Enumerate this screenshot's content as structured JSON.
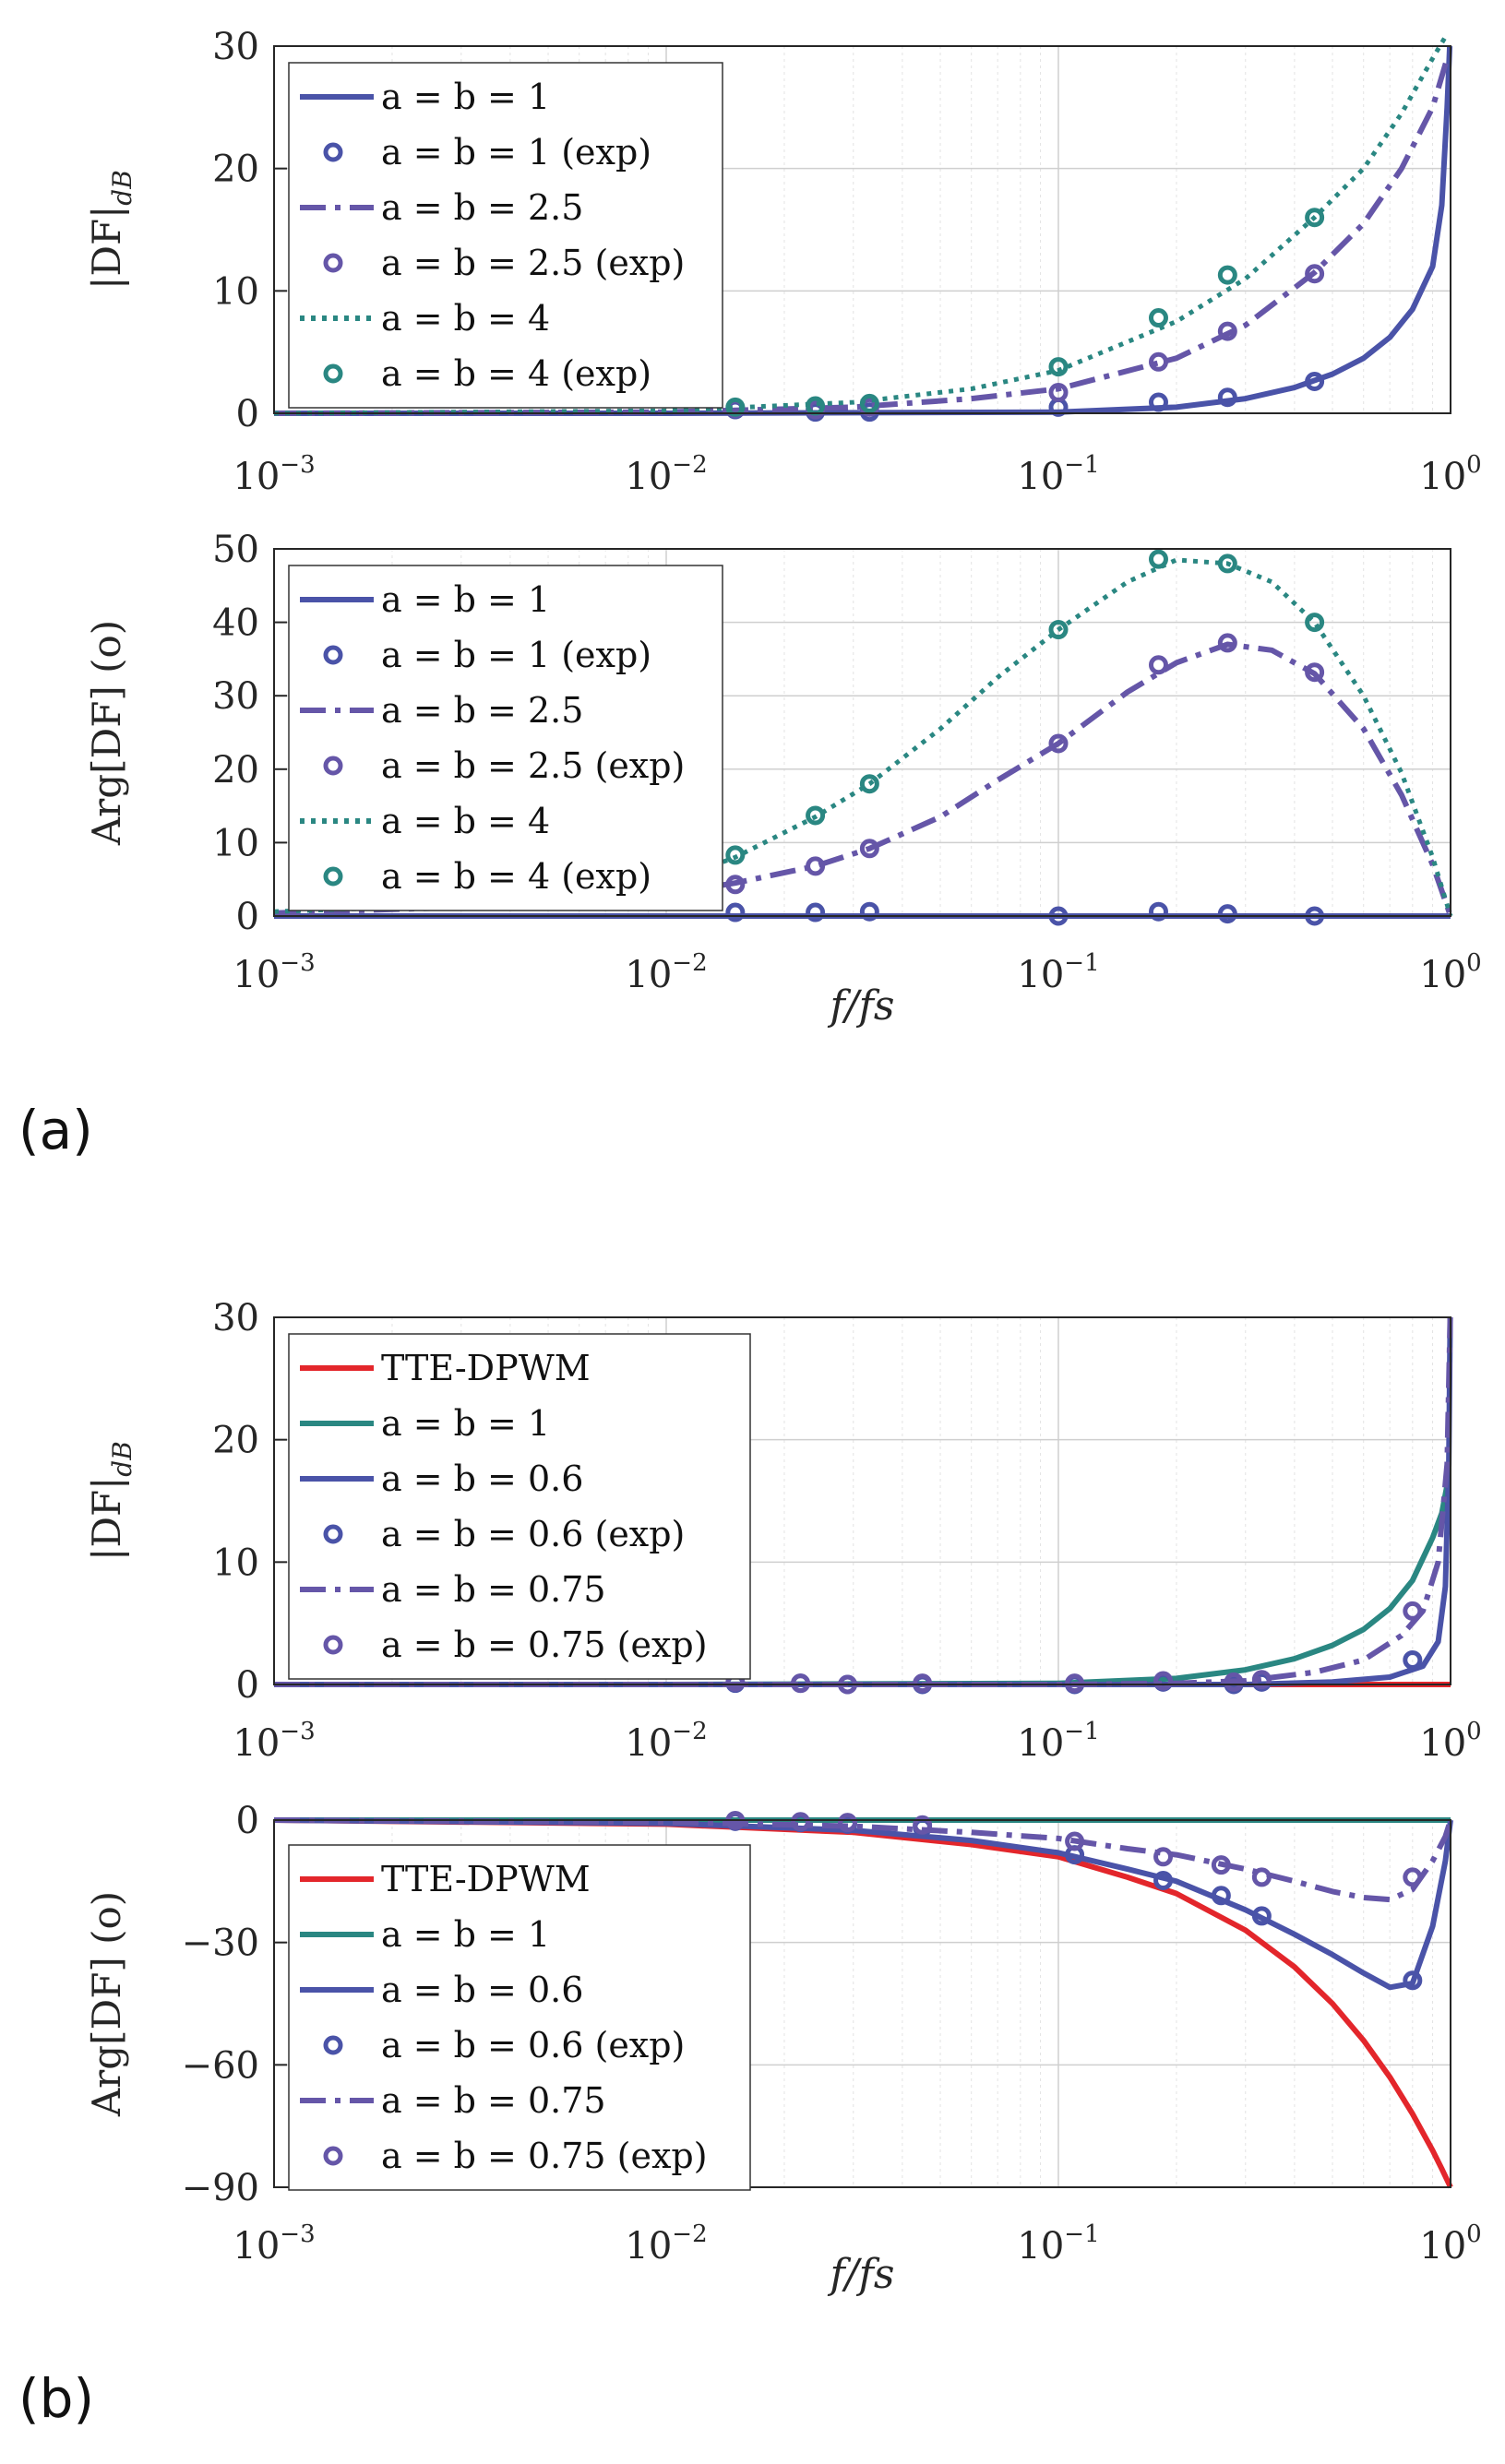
{
  "panel_labels": [
    "(a)",
    "(b)"
  ],
  "chart_data": [
    {
      "type": "line",
      "panel": "(a)",
      "xscale": "log",
      "xlim": [
        0.001,
        1
      ],
      "ylim": [
        0,
        30
      ],
      "yticks": [
        0,
        10,
        20,
        30
      ],
      "xtick_labels": [
        "10^-3",
        "10^-2",
        "10^-1",
        "10^0"
      ],
      "ylabel": "|DF|_dB",
      "xlabel": "",
      "grid": true,
      "legend_position": "top-left",
      "series": [
        {
          "name": "a = b = 1",
          "style": "solid",
          "color": "#4a53a8",
          "x": [
            0.001,
            0.01,
            0.1,
            0.2,
            0.3,
            0.4,
            0.5,
            0.6,
            0.7,
            0.8,
            0.9,
            0.95,
            0.98,
            0.995
          ],
          "y": [
            0,
            0,
            0.1,
            0.5,
            1.2,
            2.1,
            3.2,
            4.5,
            6.2,
            8.5,
            12,
            17,
            25,
            30
          ]
        },
        {
          "name": "a = b = 1 (exp)",
          "style": "marker",
          "color": "#4a53a8",
          "x": [
            0.015,
            0.024,
            0.033,
            0.1,
            0.18,
            0.27,
            0.45
          ],
          "y": [
            0.3,
            0.1,
            0.1,
            0.5,
            0.9,
            1.3,
            2.6
          ]
        },
        {
          "name": "a = b = 2.5",
          "style": "dashdot",
          "color": "#6556a8",
          "x": [
            0.001,
            0.01,
            0.03,
            0.06,
            0.1,
            0.2,
            0.3,
            0.45,
            0.6,
            0.75,
            0.9,
            0.98
          ],
          "y": [
            0,
            0.1,
            0.5,
            1.2,
            2.0,
            4.5,
            7.2,
            11.5,
            15.5,
            20,
            25,
            29
          ]
        },
        {
          "name": "a = b = 2.5 (exp)",
          "style": "marker",
          "color": "#6556a8",
          "x": [
            0.015,
            0.024,
            0.033,
            0.1,
            0.18,
            0.27,
            0.45
          ],
          "y": [
            0.4,
            0.3,
            0.5,
            1.7,
            4.2,
            6.7,
            11.4
          ]
        },
        {
          "name": "a = b = 4",
          "style": "dotted",
          "color": "#2a8782",
          "x": [
            0.001,
            0.01,
            0.03,
            0.06,
            0.1,
            0.2,
            0.3,
            0.45,
            0.6,
            0.75,
            0.9,
            0.98
          ],
          "y": [
            0,
            0.2,
            0.9,
            2.0,
            3.5,
            7.5,
            11.0,
            16.0,
            20.0,
            24.5,
            29,
            31
          ]
        },
        {
          "name": "a = b = 4 (exp)",
          "style": "marker",
          "color": "#2a8782",
          "x": [
            0.015,
            0.024,
            0.033,
            0.1,
            0.18,
            0.27,
            0.45
          ],
          "y": [
            0.5,
            0.6,
            0.8,
            3.8,
            7.8,
            11.3,
            16.0
          ]
        }
      ]
    },
    {
      "type": "line",
      "panel": "(a)",
      "xscale": "log",
      "xlim": [
        0.001,
        1
      ],
      "ylim": [
        0,
        50
      ],
      "yticks": [
        0,
        10,
        20,
        30,
        40,
        50
      ],
      "xtick_labels": [
        "10^-3",
        "10^-2",
        "10^-1",
        "10^0"
      ],
      "ylabel": "Arg[DF] (o)",
      "xlabel": "f/fs",
      "grid": true,
      "legend_position": "top-left",
      "series": [
        {
          "name": "a = b = 1",
          "style": "solid",
          "color": "#4a53a8",
          "x": [
            0.001,
            1
          ],
          "y": [
            0,
            0
          ]
        },
        {
          "name": "a = b = 1 (exp)",
          "style": "marker",
          "color": "#4a53a8",
          "x": [
            0.015,
            0.024,
            0.033,
            0.1,
            0.18,
            0.27,
            0.45
          ],
          "y": [
            0.5,
            0.5,
            0.6,
            0,
            0.6,
            0.3,
            0
          ]
        },
        {
          "name": "a = b = 2.5",
          "style": "dashdot",
          "color": "#6556a8",
          "x": [
            0.001,
            0.003,
            0.006,
            0.01,
            0.015,
            0.024,
            0.033,
            0.05,
            0.07,
            0.1,
            0.15,
            0.2,
            0.27,
            0.35,
            0.45,
            0.6,
            0.75,
            0.9,
            1.0
          ],
          "y": [
            0.4,
            1.2,
            2.2,
            3.0,
            4.5,
            6.8,
            9.2,
            13.5,
            18.5,
            23.5,
            30.5,
            34.5,
            37.0,
            36.2,
            33.0,
            25.5,
            16.5,
            7.0,
            0
          ]
        },
        {
          "name": "a = b = 2.5 (exp)",
          "style": "marker",
          "color": "#6556a8",
          "x": [
            0.015,
            0.024,
            0.033,
            0.1,
            0.18,
            0.27,
            0.45
          ],
          "y": [
            4.3,
            6.8,
            9.2,
            23.5,
            34.2,
            37.2,
            33.2
          ]
        },
        {
          "name": "a = b = 4",
          "style": "dotted",
          "color": "#2a8782",
          "x": [
            0.001,
            0.003,
            0.006,
            0.01,
            0.015,
            0.024,
            0.033,
            0.05,
            0.07,
            0.1,
            0.15,
            0.2,
            0.27,
            0.35,
            0.45,
            0.6,
            0.75,
            0.9,
            1.0
          ],
          "y": [
            0.6,
            1.5,
            3.0,
            4.5,
            8.0,
            13.5,
            18.0,
            25.5,
            32.5,
            39.0,
            45.5,
            48.5,
            48.0,
            45.5,
            40.0,
            30.0,
            19.5,
            8.0,
            0
          ]
        },
        {
          "name": "a = b = 4 (exp)",
          "style": "marker",
          "color": "#2a8782",
          "x": [
            0.015,
            0.024,
            0.033,
            0.1,
            0.18,
            0.27,
            0.45
          ],
          "y": [
            8.3,
            13.7,
            18.0,
            39.0,
            48.6,
            48.0,
            40.0
          ]
        }
      ]
    },
    {
      "type": "line",
      "panel": "(b)",
      "xscale": "log",
      "xlim": [
        0.001,
        1
      ],
      "ylim": [
        0,
        30
      ],
      "yticks": [
        0,
        10,
        20,
        30
      ],
      "xtick_labels": [
        "10^-3",
        "10^-2",
        "10^-1",
        "10^0"
      ],
      "ylabel": "|DF|_dB",
      "xlabel": "",
      "grid": true,
      "legend_position": "top-left",
      "series": [
        {
          "name": "TTE-DPWM",
          "style": "solid",
          "color": "#e3262b",
          "x": [
            0.001,
            1
          ],
          "y": [
            0,
            0
          ]
        },
        {
          "name": "a = b = 1",
          "style": "solid",
          "color": "#2a8782",
          "x": [
            0.001,
            0.01,
            0.1,
            0.2,
            0.3,
            0.4,
            0.5,
            0.6,
            0.7,
            0.8,
            0.9,
            0.95,
            0.99
          ],
          "y": [
            0,
            0,
            0.1,
            0.5,
            1.2,
            2.1,
            3.2,
            4.5,
            6.2,
            8.5,
            12,
            14,
            17
          ]
        },
        {
          "name": "a = b = 0.6",
          "style": "solid",
          "color": "#4a53a8",
          "x": [
            0.001,
            0.1,
            0.3,
            0.5,
            0.7,
            0.85,
            0.93,
            0.97,
            0.99,
            0.998
          ],
          "y": [
            0,
            0,
            0,
            0.2,
            0.6,
            1.5,
            3.5,
            8,
            18,
            30
          ]
        },
        {
          "name": "a = b = 0.6 (exp)",
          "style": "marker",
          "color": "#4a53a8",
          "x": [
            0.015,
            0.022,
            0.029,
            0.045,
            0.11,
            0.185,
            0.28,
            0.33,
            0.8
          ],
          "y": [
            0.1,
            0.1,
            0,
            0,
            0,
            0.2,
            0,
            0.2,
            2.0
          ]
        },
        {
          "name": "a = b = 0.75",
          "style": "dashdot",
          "color": "#6556a8",
          "x": [
            0.001,
            0.1,
            0.2,
            0.3,
            0.45,
            0.6,
            0.75,
            0.85,
            0.93,
            0.98,
            0.998
          ],
          "y": [
            0,
            0,
            0.1,
            0.3,
            1.0,
            2.0,
            4.0,
            6.0,
            10,
            18,
            30
          ]
        },
        {
          "name": "a = b = 0.75 (exp)",
          "style": "marker",
          "color": "#6556a8",
          "x": [
            0.015,
            0.022,
            0.029,
            0.045,
            0.11,
            0.185,
            0.28,
            0.33,
            0.8
          ],
          "y": [
            0.2,
            0.1,
            0,
            0.1,
            0.1,
            0.3,
            0.2,
            0.4,
            6.0
          ]
        }
      ]
    },
    {
      "type": "line",
      "panel": "(b)",
      "xscale": "log",
      "xlim": [
        0.001,
        1
      ],
      "ylim": [
        -90,
        0
      ],
      "yticks": [
        -90,
        -60,
        -30,
        0
      ],
      "xtick_labels": [
        "10^-3",
        "10^-2",
        "10^-1",
        "10^0"
      ],
      "ylabel": "Arg[DF] (o)",
      "xlabel": "f/fs",
      "grid": true,
      "legend_position": "top-left",
      "series": [
        {
          "name": "TTE-DPWM",
          "style": "solid",
          "color": "#e3262b",
          "x": [
            0.001,
            0.01,
            0.03,
            0.06,
            0.1,
            0.15,
            0.2,
            0.3,
            0.4,
            0.5,
            0.6,
            0.7,
            0.8,
            0.9,
            0.95,
            1.0
          ],
          "y": [
            0,
            -1.0,
            -3,
            -6,
            -9,
            -14,
            -18,
            -27,
            -36,
            -45,
            -54,
            -63,
            -72,
            -81,
            -85.5,
            -90
          ]
        },
        {
          "name": "a = b = 1",
          "style": "solid",
          "color": "#2a8782",
          "x": [
            0.001,
            1
          ],
          "y": [
            0,
            0
          ]
        },
        {
          "name": "a = b = 0.6",
          "style": "solid",
          "color": "#4a53a8",
          "x": [
            0.001,
            0.01,
            0.03,
            0.06,
            0.1,
            0.15,
            0.2,
            0.3,
            0.4,
            0.5,
            0.6,
            0.7,
            0.8,
            0.9,
            0.97,
            1.0
          ],
          "y": [
            0,
            -0.8,
            -2.5,
            -5,
            -8,
            -12,
            -15,
            -22,
            -28,
            -33,
            -37.5,
            -41,
            -40,
            -26,
            -10,
            0
          ]
        },
        {
          "name": "a = b = 0.6 (exp)",
          "style": "marker",
          "color": "#4a53a8",
          "x": [
            0.015,
            0.022,
            0.029,
            0.045,
            0.11,
            0.185,
            0.26,
            0.33,
            0.8
          ],
          "y": [
            -0.3,
            -0.6,
            -1.0,
            -1.8,
            -8.5,
            -14.8,
            -18.5,
            -23.5,
            -39.3
          ]
        },
        {
          "name": "a = b = 0.75",
          "style": "dashdot",
          "color": "#6556a8",
          "x": [
            0.001,
            0.01,
            0.03,
            0.06,
            0.1,
            0.15,
            0.2,
            0.3,
            0.4,
            0.5,
            0.6,
            0.7,
            0.8,
            0.9,
            0.97,
            1.0
          ],
          "y": [
            0,
            -0.5,
            -1.5,
            -3,
            -4.5,
            -7,
            -8.5,
            -12,
            -15,
            -17.5,
            -19,
            -19.5,
            -17,
            -10,
            -4,
            0
          ]
        },
        {
          "name": "a = b = 0.75 (exp)",
          "style": "marker",
          "color": "#6556a8",
          "x": [
            0.015,
            0.022,
            0.029,
            0.045,
            0.11,
            0.185,
            0.26,
            0.33,
            0.8
          ],
          "y": [
            -0.1,
            -0.4,
            -0.6,
            -1.2,
            -5.2,
            -9.0,
            -11.0,
            -14.0,
            -14.0
          ]
        }
      ]
    }
  ]
}
